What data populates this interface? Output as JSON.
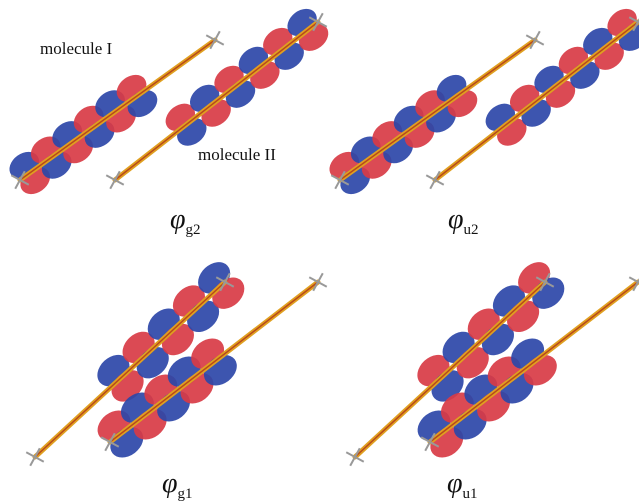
{
  "annotations": {
    "molecule_1": "molecule I",
    "molecule_2": "molecule II"
  },
  "panels": [
    {
      "label": {
        "symbol": "φ",
        "subscript": "g2"
      }
    },
    {
      "label": {
        "symbol": "φ",
        "subscript": "u2"
      }
    },
    {
      "label": {
        "symbol": "φ",
        "subscript": "g1"
      }
    },
    {
      "label": {
        "symbol": "φ",
        "subscript": "u1"
      }
    }
  ]
}
